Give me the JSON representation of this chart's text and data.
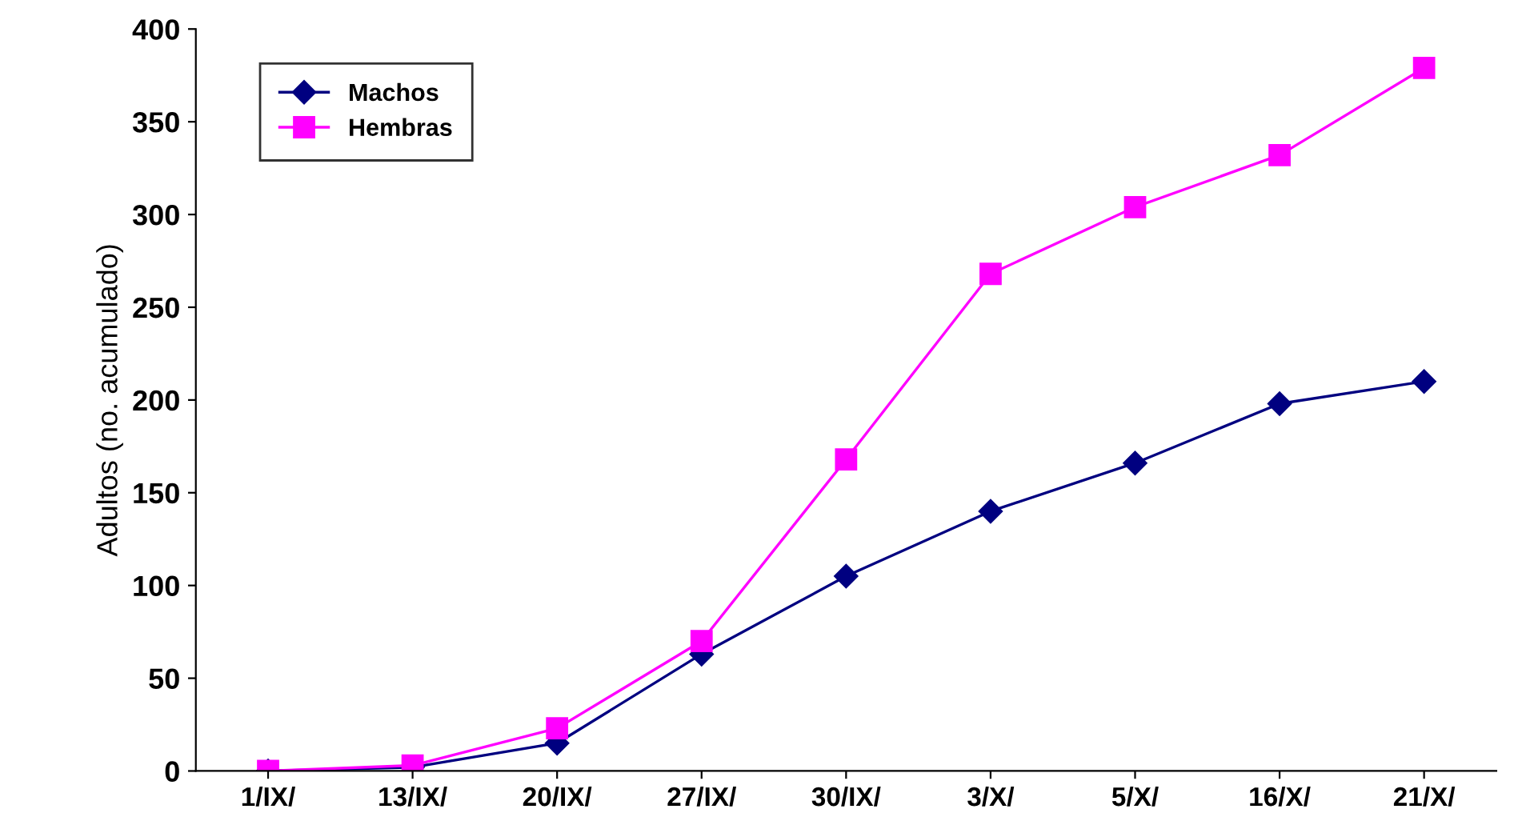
{
  "chart_data": {
    "type": "line",
    "ylabel": "Adultos (no. acumulado)",
    "categories": [
      "1/IX/",
      "13/IX/",
      "20/IX/",
      "27/IX/",
      "30/IX/",
      "3/X/",
      "5/X/",
      "16/X/",
      "21/X/"
    ],
    "series": [
      {
        "name": "Machos",
        "color": "#000080",
        "marker": "diamond",
        "values": [
          0,
          2,
          15,
          63,
          105,
          140,
          166,
          198,
          210
        ]
      },
      {
        "name": "Hembras",
        "color": "#ff00ff",
        "marker": "square",
        "values": [
          0,
          3,
          23,
          70,
          168,
          268,
          304,
          332,
          379
        ]
      }
    ],
    "ylim": [
      0,
      400
    ],
    "yticks": [
      0,
      50,
      100,
      150,
      200,
      250,
      300,
      350,
      400
    ],
    "grid": false,
    "legend": "top left",
    "line_style": "solid"
  }
}
